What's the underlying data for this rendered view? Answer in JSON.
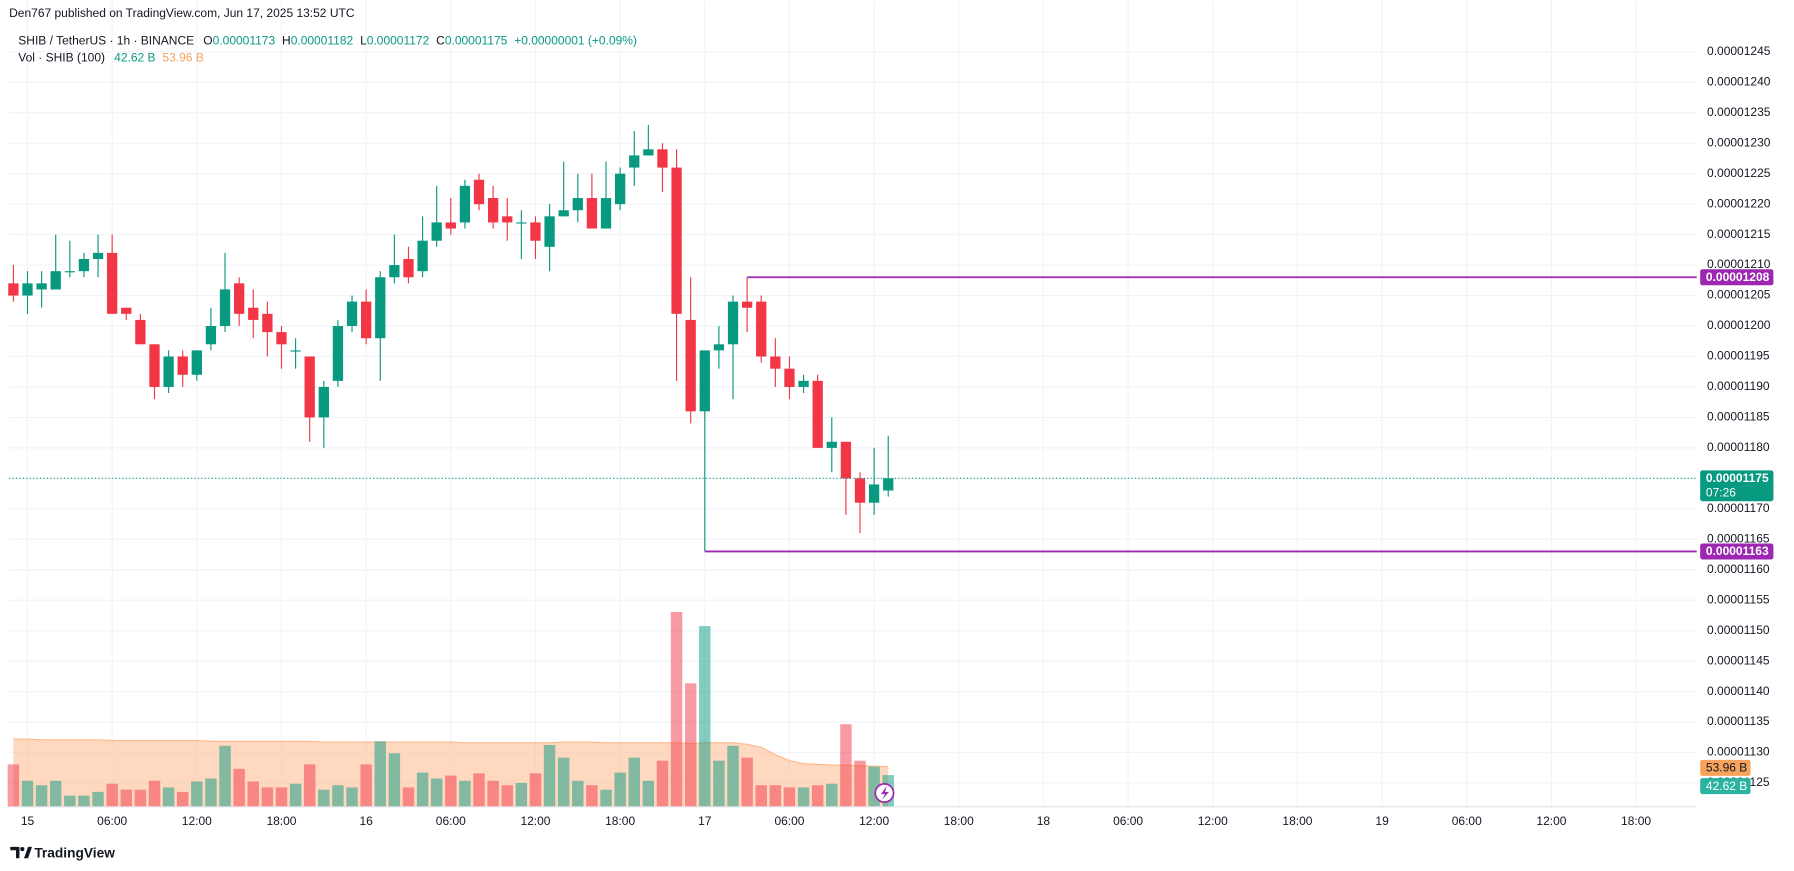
{
  "publisher": "Den767 published on TradingView.com, Jun 17, 2025 13:52 UTC",
  "footer": "TradingView",
  "chart_data": {
    "type": "candlestick",
    "symbol": "SHIB / TetherUS · 1h · BINANCE",
    "ohlc_labels": {
      "open": "O",
      "high": "H",
      "low": "L",
      "close": "C"
    },
    "change_label": "+0.00000001 (+0.09%)",
    "volume_title": "Vol · SHIB (100)",
    "volume_label": "42.62 B",
    "volume_ma_label": "53.96 B",
    "countdown": "07:26",
    "up_color": "#089981",
    "down_color": "#f23645",
    "volume_ma_color": "#ffb88c",
    "level_color": "#9c27b0",
    "grid": true,
    "open": [
      1.207e-05,
      1.205e-05,
      1.206e-05,
      1.206e-05,
      1.209e-05,
      1.209e-05,
      1.211e-05,
      1.212e-05,
      1.203e-05,
      1.201e-05,
      1.197e-05,
      1.19e-05,
      1.195e-05,
      1.192e-05,
      1.197e-05,
      1.2e-05,
      1.207e-05,
      1.203e-05,
      1.202e-05,
      1.199e-05,
      1.196e-05,
      1.195e-05,
      1.185e-05,
      1.191e-05,
      1.2e-05,
      1.204e-05,
      1.198e-05,
      1.208e-05,
      1.211e-05,
      1.209e-05,
      1.214e-05,
      1.217e-05,
      1.217e-05,
      1.224e-05,
      1.221e-05,
      1.218e-05,
      1.217e-05,
      1.217e-05,
      1.213e-05,
      1.218e-05,
      1.219e-05,
      1.221e-05,
      1.216e-05,
      1.22e-05,
      1.226e-05,
      1.228e-05,
      1.229e-05,
      1.226e-05,
      1.201e-05,
      1.186e-05,
      1.196e-05,
      1.197e-05,
      1.204e-05,
      1.204e-05,
      1.195e-05,
      1.193e-05,
      1.19e-05,
      1.191e-05,
      1.18e-05,
      1.181e-05,
      1.175e-05,
      1.171e-05,
      1.173e-05
    ],
    "high": [
      1.21e-05,
      1.209e-05,
      1.209e-05,
      1.215e-05,
      1.214e-05,
      1.212e-05,
      1.215e-05,
      1.215e-05,
      1.203e-05,
      1.202e-05,
      1.197e-05,
      1.196e-05,
      1.196e-05,
      1.196e-05,
      1.203e-05,
      1.212e-05,
      1.208e-05,
      1.206e-05,
      1.204e-05,
      1.2e-05,
      1.198e-05,
      1.195e-05,
      1.191e-05,
      1.201e-05,
      1.205e-05,
      1.206e-05,
      1.209e-05,
      1.215e-05,
      1.213e-05,
      1.218e-05,
      1.223e-05,
      1.221e-05,
      1.224e-05,
      1.225e-05,
      1.223e-05,
      1.221e-05,
      1.219e-05,
      1.218e-05,
      1.22e-05,
      1.227e-05,
      1.225e-05,
      1.225e-05,
      1.227e-05,
      1.226e-05,
      1.232e-05,
      1.233e-05,
      1.23e-05,
      1.229e-05,
      1.208e-05,
      1.196e-05,
      1.2e-05,
      1.205e-05,
      1.208e-05,
      1.205e-05,
      1.198e-05,
      1.195e-05,
      1.192e-05,
      1.192e-05,
      1.185e-05,
      1.181e-05,
      1.176e-05,
      1.18e-05,
      1.182e-05
    ],
    "low": [
      1.204e-05,
      1.202e-05,
      1.203e-05,
      1.206e-05,
      1.208e-05,
      1.208e-05,
      1.208e-05,
      1.202e-05,
      1.201e-05,
      1.197e-05,
      1.188e-05,
      1.189e-05,
      1.19e-05,
      1.191e-05,
      1.196e-05,
      1.199e-05,
      1.2e-05,
      1.198e-05,
      1.195e-05,
      1.193e-05,
      1.193e-05,
      1.181e-05,
      1.18e-05,
      1.19e-05,
      1.199e-05,
      1.197e-05,
      1.191e-05,
      1.207e-05,
      1.207e-05,
      1.208e-05,
      1.213e-05,
      1.215e-05,
      1.216e-05,
      1.219e-05,
      1.216e-05,
      1.214e-05,
      1.211e-05,
      1.211e-05,
      1.209e-05,
      1.218e-05,
      1.217e-05,
      1.216e-05,
      1.216e-05,
      1.219e-05,
      1.223e-05,
      1.228e-05,
      1.222e-05,
      1.191e-05,
      1.184e-05,
      1.163e-05,
      1.193e-05,
      1.188e-05,
      1.199e-05,
      1.194e-05,
      1.19e-05,
      1.188e-05,
      1.189e-05,
      1.18e-05,
      1.176e-05,
      1.169e-05,
      1.166e-05,
      1.169e-05,
      1.172e-05
    ],
    "close": [
      1.205e-05,
      1.207e-05,
      1.207e-05,
      1.209e-05,
      1.209e-05,
      1.211e-05,
      1.212e-05,
      1.202e-05,
      1.202e-05,
      1.197e-05,
      1.19e-05,
      1.195e-05,
      1.192e-05,
      1.196e-05,
      1.2e-05,
      1.206e-05,
      1.202e-05,
      1.201e-05,
      1.199e-05,
      1.197e-05,
      1.196e-05,
      1.185e-05,
      1.19e-05,
      1.2e-05,
      1.204e-05,
      1.198e-05,
      1.208e-05,
      1.21e-05,
      1.208e-05,
      1.214e-05,
      1.217e-05,
      1.216e-05,
      1.223e-05,
      1.22e-05,
      1.217e-05,
      1.217e-05,
      1.217e-05,
      1.214e-05,
      1.218e-05,
      1.219e-05,
      1.221e-05,
      1.216e-05,
      1.221e-05,
      1.225e-05,
      1.228e-05,
      1.229e-05,
      1.226e-05,
      1.202e-05,
      1.186e-05,
      1.196e-05,
      1.197e-05,
      1.204e-05,
      1.203e-05,
      1.195e-05,
      1.193e-05,
      1.19e-05,
      1.191e-05,
      1.18e-05,
      1.181e-05,
      1.175e-05,
      1.171e-05,
      1.174e-05,
      1.175e-05
    ],
    "volume": [
      57,
      35,
      29,
      35,
      15,
      15,
      20,
      31,
      23,
      23,
      35,
      26,
      20,
      34,
      38,
      82,
      51,
      34,
      26,
      26,
      31,
      57,
      23,
      29,
      26,
      57,
      88,
      72,
      26,
      46,
      38,
      42,
      35,
      45,
      35,
      29,
      32,
      45,
      83,
      66,
      35,
      29,
      23,
      46,
      66,
      35,
      62,
      262,
      166,
      243,
      62,
      82,
      66,
      29,
      29,
      26,
      26,
      29,
      31,
      111,
      62,
      54,
      42.62
    ],
    "volume_ma": [
      91,
      91,
      90,
      90,
      90,
      90,
      90,
      89,
      89,
      89,
      89,
      89,
      89,
      89,
      88,
      88,
      88,
      88,
      88,
      88,
      88,
      88,
      87,
      87,
      87,
      87,
      87,
      87,
      87,
      87,
      87,
      87,
      86,
      86,
      86,
      86,
      86,
      86,
      86,
      87,
      87,
      87,
      86,
      86,
      86,
      86,
      86,
      86,
      85,
      86,
      86,
      86,
      84,
      80,
      70,
      62,
      58,
      57,
      56,
      56,
      55,
      54.5,
      53.96
    ],
    "levels": [
      {
        "value": 1.208e-05,
        "from_x": 52
      },
      {
        "value": 1.163e-05,
        "from_x": 49
      }
    ],
    "xlim": [
      -0.3,
      119.3
    ],
    "xticks": [
      {
        "value": 1,
        "label": "15"
      },
      {
        "value": 7,
        "label": "06:00"
      },
      {
        "value": 13,
        "label": "12:00"
      },
      {
        "value": 19,
        "label": "18:00"
      },
      {
        "value": 25,
        "label": "16"
      },
      {
        "value": 31,
        "label": "06:00"
      },
      {
        "value": 37,
        "label": "12:00"
      },
      {
        "value": 43,
        "label": "18:00"
      },
      {
        "value": 49,
        "label": "17"
      },
      {
        "value": 55,
        "label": "06:00"
      },
      {
        "value": 61,
        "label": "12:00"
      },
      {
        "value": 67,
        "label": "18:00"
      },
      {
        "value": 73,
        "label": "18"
      },
      {
        "value": 79,
        "label": "06:00"
      },
      {
        "value": 85,
        "label": "12:00"
      },
      {
        "value": 91,
        "label": "18:00"
      },
      {
        "value": 97,
        "label": "19"
      },
      {
        "value": 103,
        "label": "06:00"
      },
      {
        "value": 109,
        "label": "12:00"
      },
      {
        "value": 115,
        "label": "18:00"
      }
    ],
    "ylim": [
      1.1211e-05,
      1.2516e-05
    ],
    "yticks": [
      1.245e-05,
      {
        "value": 1.24e-05,
        "label": "0.00001240"
      },
      1.235e-05,
      {
        "value": 1.23e-05,
        "label": "0.00001230"
      },
      1.225e-05,
      {
        "value": 1.22e-05,
        "label": "0.00001220"
      },
      1.215e-05,
      {
        "value": 1.21e-05,
        "label": "0.00001210"
      },
      1.205e-05,
      {
        "value": 1.2e-05,
        "label": "0.00001200"
      },
      1.195e-05,
      {
        "value": 1.19e-05,
        "label": "0.00001190"
      },
      1.185e-05,
      {
        "value": 1.18e-05,
        "label": "0.00001180"
      },
      1.175e-05,
      {
        "value": 1.17e-05,
        "label": "0.00001170"
      },
      1.165e-05,
      {
        "value": 1.16e-05,
        "label": "0.00001160"
      },
      1.155e-05,
      {
        "value": 1.15e-05,
        "label": "0.00001150"
      },
      1.145e-05,
      {
        "value": 1.14e-05,
        "label": "0.00001140"
      },
      1.135e-05,
      {
        "value": 1.13e-05,
        "label": "0.00001130"
      },
      1.125e-05
    ]
  }
}
